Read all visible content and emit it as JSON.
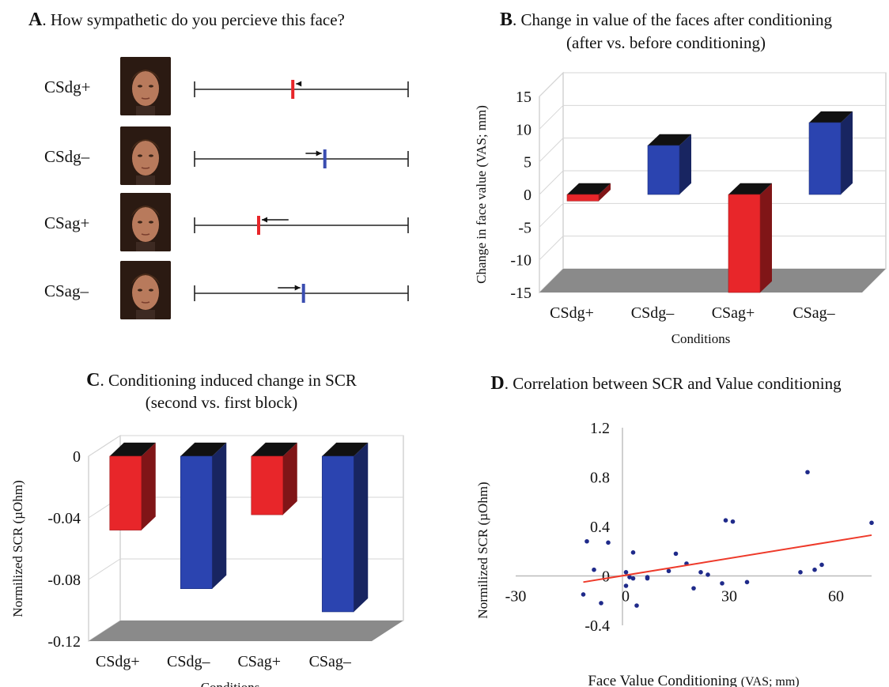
{
  "panel_a": {
    "letter": "A",
    "title": ". How sympathetic do you percieve this face?",
    "rows": [
      {
        "label": "CSdg+",
        "mark": 0.46,
        "arrow_from": 0.49,
        "color": "#e8262a"
      },
      {
        "label": "CSdg–",
        "mark": 0.61,
        "arrow_from": 0.52,
        "color": "#3a4db0"
      },
      {
        "label": "CSag+",
        "mark": 0.3,
        "arrow_from": 0.44,
        "color": "#e8262a"
      },
      {
        "label": "CSag–",
        "mark": 0.51,
        "arrow_from": 0.39,
        "color": "#3a4db0"
      }
    ]
  },
  "chart_data": [
    {
      "id": "B",
      "type": "bar",
      "letter": "B",
      "title": ". Change in value of the faces after conditioning",
      "subtitle": "(after vs. before conditioning)",
      "xlabel": "Conditions",
      "ylabel": "Change in face value (VAS; mm)",
      "categories": [
        "CSdg+",
        "CSdg–",
        "CSag+",
        "CSag–"
      ],
      "values": [
        -1,
        7.5,
        -15,
        11
      ],
      "colors": [
        "#e8262a",
        "#2b44b0",
        "#e8262a",
        "#2b44b0"
      ],
      "ylim": [
        -15,
        15
      ],
      "yticks": [
        "15",
        "10",
        "5",
        "0",
        "-5",
        "-10",
        "-15"
      ],
      "ytick_values": [
        15,
        10,
        5,
        0,
        -5,
        -10,
        -15
      ]
    },
    {
      "id": "C",
      "type": "bar",
      "letter": "C",
      "title": ". Conditioning induced change in SCR",
      "subtitle": "(second vs. first block)",
      "xlabel": "Conditions",
      "ylabel": "Normilized SCR (µOhm)",
      "categories": [
        "CSdg+",
        "CSdg–",
        "CSag+",
        "CSag–"
      ],
      "values": [
        -0.048,
        -0.086,
        -0.038,
        -0.101
      ],
      "colors": [
        "#e8262a",
        "#2b44b0",
        "#e8262a",
        "#2b44b0"
      ],
      "ylim": [
        -0.12,
        0
      ],
      "yticks": [
        "0",
        "-0.04",
        "-0.08",
        "-0.12"
      ],
      "ytick_values": [
        0,
        -0.04,
        -0.08,
        -0.12
      ]
    },
    {
      "id": "D",
      "type": "scatter",
      "letter": "D",
      "title": ". Correlation between SCR and Value conditioning",
      "xlabel": "Face Value Conditioning",
      "xlabel_units": "(VAS; mm)",
      "ylabel": "Normilized SCR (µOhm)",
      "xlim": [
        -30,
        70
      ],
      "ylim": [
        -0.4,
        1.2
      ],
      "xticks": [
        "-30",
        "0",
        "30",
        "60"
      ],
      "xtick_values": [
        -30,
        0,
        30,
        60
      ],
      "yticks": [
        "1.2",
        "0.8",
        "0.4",
        "0",
        "-0.4"
      ],
      "ytick_values": [
        1.2,
        0.8,
        0.4,
        0,
        -0.4
      ],
      "points": [
        [
          -10,
          0.28
        ],
        [
          -8,
          0.05
        ],
        [
          -6,
          -0.22
        ],
        [
          -4,
          0.27
        ],
        [
          -11,
          -0.15
        ],
        [
          1,
          0.03
        ],
        [
          1,
          -0.08
        ],
        [
          2,
          -0.01
        ],
        [
          3,
          0.19
        ],
        [
          3,
          -0.02
        ],
        [
          4,
          -0.24
        ],
        [
          7,
          -0.01
        ],
        [
          7,
          -0.02
        ],
        [
          13,
          0.04
        ],
        [
          15,
          0.18
        ],
        [
          18,
          0.1
        ],
        [
          20,
          -0.1
        ],
        [
          22,
          0.03
        ],
        [
          24,
          0.01
        ],
        [
          28,
          -0.06
        ],
        [
          29,
          0.45
        ],
        [
          31,
          0.44
        ],
        [
          35,
          -0.05
        ],
        [
          50,
          0.03
        ],
        [
          54,
          0.05
        ],
        [
          56,
          0.09
        ],
        [
          52,
          0.84
        ],
        [
          70,
          0.43
        ]
      ],
      "trend": {
        "x": [
          -11,
          70
        ],
        "y": [
          -0.05,
          0.33
        ],
        "color": "#ee3a2a"
      },
      "point_color": "#1f2a8a"
    }
  ]
}
